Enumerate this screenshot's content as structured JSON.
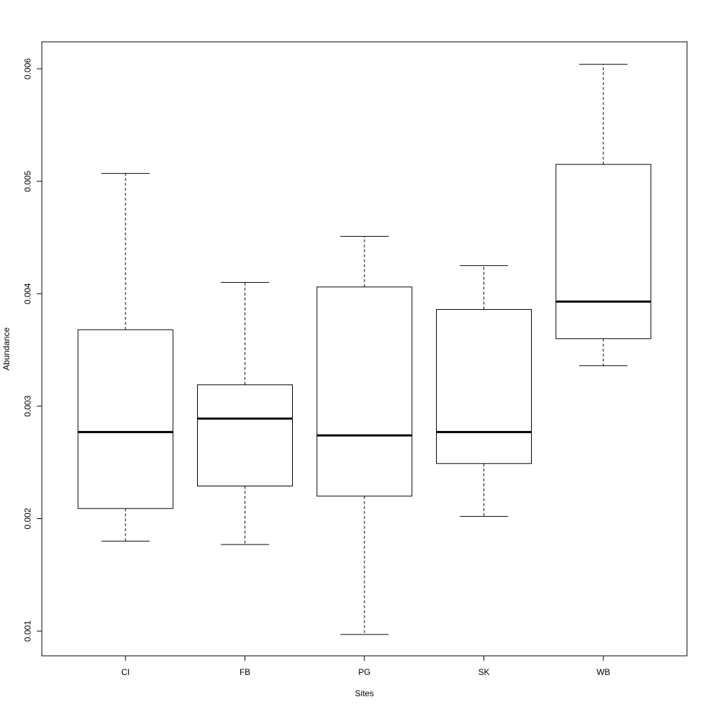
{
  "chart_data": {
    "type": "boxplot",
    "x_label": "Sites",
    "y_label": "Abundance",
    "categories": [
      "CI",
      "FB",
      "PG",
      "SK",
      "WB"
    ],
    "min": [
      0.0018,
      0.00177,
      0.00097,
      0.00202,
      0.00336
    ],
    "q1": [
      0.00209,
      0.00229,
      0.0022,
      0.00249,
      0.0036
    ],
    "median": [
      0.00277,
      0.00289,
      0.00274,
      0.00277,
      0.00393
    ],
    "q3": [
      0.00368,
      0.00319,
      0.00406,
      0.00386,
      0.00515
    ],
    "max": [
      0.00507,
      0.0041,
      0.00451,
      0.00425,
      0.00604
    ],
    "color": "#000000",
    "ylim": [
      0.00078,
      0.00624
    ],
    "yticks": [
      0.001,
      0.002,
      0.003,
      0.004,
      0.005,
      0.006
    ]
  }
}
